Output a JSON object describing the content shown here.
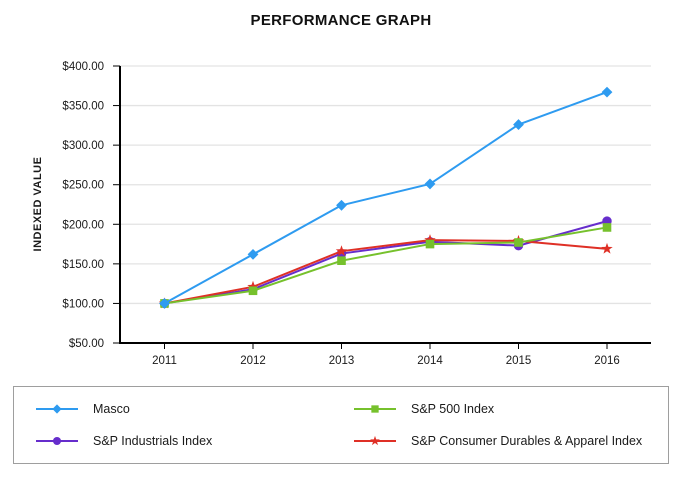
{
  "title": "PERFORMANCE GRAPH",
  "chart_data": {
    "type": "line",
    "title": "PERFORMANCE GRAPH",
    "xlabel": "",
    "ylabel": "INDEXED VALUE",
    "categories": [
      "2011",
      "2012",
      "2013",
      "2014",
      "2015",
      "2016"
    ],
    "ylim": [
      50,
      400
    ],
    "ytick_step": 50,
    "ytick_labels": [
      "$50.00",
      "$100.00",
      "$150.00",
      "$200.00",
      "$250.00",
      "$300.00",
      "$350.00",
      "$400.00"
    ],
    "grid": "horizontal",
    "legend_position": "bottom-box",
    "series": [
      {
        "name": "Masco",
        "marker": "diamond",
        "color": "#2E9BF0",
        "values": [
          100,
          162,
          224,
          251,
          326,
          367
        ]
      },
      {
        "name": "S&P 500 Index",
        "marker": "square",
        "color": "#76C12C",
        "values": [
          100,
          116,
          154,
          175,
          177,
          196
        ]
      },
      {
        "name": "S&P Industrials Index",
        "marker": "circle",
        "color": "#662DCC",
        "values": [
          100,
          118,
          163,
          178,
          173,
          204
        ]
      },
      {
        "name": "S&P Consumer Durables & Apparel Index",
        "marker": "star",
        "color": "#DF3026",
        "values": [
          100,
          121,
          166,
          180,
          179,
          169
        ]
      }
    ]
  },
  "legend": {
    "items": [
      {
        "label": "Masco"
      },
      {
        "label": "S&P 500 Index"
      },
      {
        "label": "S&P Industrials Index"
      },
      {
        "label": "S&P Consumer Durables & Apparel Index"
      }
    ]
  },
  "colors": {
    "grid": "#E3E3E3",
    "axis": "#000000",
    "tick_text": "#1A1A1A",
    "legend_border": "#9E9E9E"
  }
}
